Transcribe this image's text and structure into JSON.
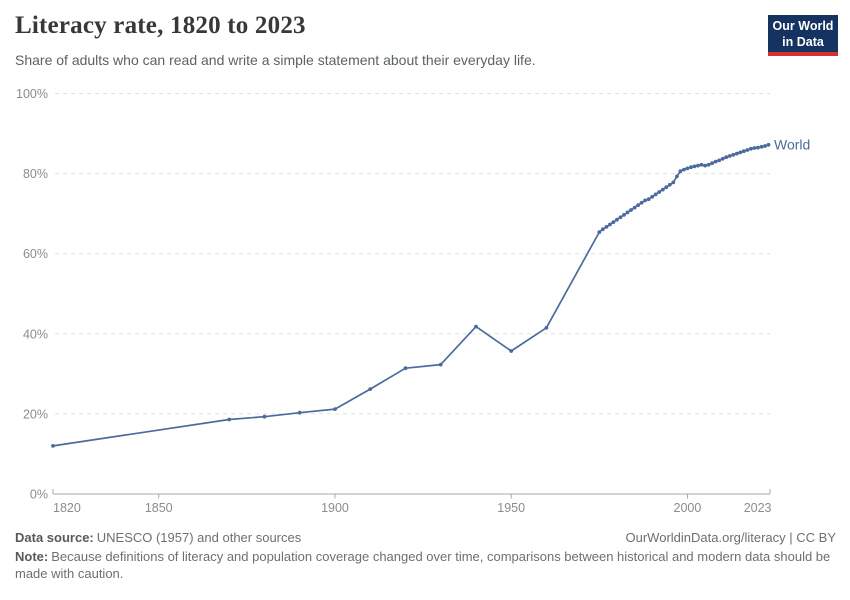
{
  "header": {
    "title": "Literacy rate, 1820 to 2023",
    "subtitle": "Share of adults who can read and write a simple statement about their everyday life.",
    "logo": {
      "line1": "Our World",
      "line2": "in Data",
      "bg_color": "#153360",
      "bar_color": "#d1342f"
    }
  },
  "chart_data": {
    "type": "line",
    "title": "Literacy rate, 1820 to 2023",
    "xlabel": "",
    "ylabel": "",
    "xlim": [
      1820,
      2023
    ],
    "ylim": [
      0,
      100
    ],
    "grid": "horizontal-dashed",
    "legend_position": "end-of-line-label",
    "y_ticks": [
      {
        "value": 0,
        "label": "0%"
      },
      {
        "value": 20,
        "label": "20%"
      },
      {
        "value": 40,
        "label": "40%"
      },
      {
        "value": 60,
        "label": "60%"
      },
      {
        "value": 80,
        "label": "80%"
      },
      {
        "value": 100,
        "label": "100%"
      }
    ],
    "x_ticks": [
      {
        "value": 1820,
        "label": "1820"
      },
      {
        "value": 1850,
        "label": "1850"
      },
      {
        "value": 1900,
        "label": "1900"
      },
      {
        "value": 1950,
        "label": "1950"
      },
      {
        "value": 2000,
        "label": "2000"
      },
      {
        "value": 2023,
        "label": "2023"
      }
    ],
    "series": [
      {
        "name": "World",
        "color": "#4C6A9C",
        "points": [
          [
            1820,
            12.0
          ],
          [
            1870,
            18.6
          ],
          [
            1880,
            19.3
          ],
          [
            1890,
            20.3
          ],
          [
            1900,
            21.2
          ],
          [
            1910,
            26.2
          ],
          [
            1920,
            31.4
          ],
          [
            1930,
            32.3
          ],
          [
            1940,
            41.8
          ],
          [
            1950,
            35.7
          ],
          [
            1960,
            41.5
          ],
          [
            1975,
            65.4
          ],
          [
            1976,
            66.1
          ],
          [
            1977,
            66.7
          ],
          [
            1978,
            67.3
          ],
          [
            1979,
            67.9
          ],
          [
            1980,
            68.5
          ],
          [
            1981,
            69.1
          ],
          [
            1982,
            69.7
          ],
          [
            1983,
            70.3
          ],
          [
            1984,
            70.9
          ],
          [
            1985,
            71.5
          ],
          [
            1986,
            72.1
          ],
          [
            1987,
            72.7
          ],
          [
            1988,
            73.3
          ],
          [
            1989,
            73.6
          ],
          [
            1990,
            74.2
          ],
          [
            1991,
            74.8
          ],
          [
            1992,
            75.4
          ],
          [
            1993,
            76.0
          ],
          [
            1994,
            76.6
          ],
          [
            1995,
            77.2
          ],
          [
            1996,
            77.8
          ],
          [
            1997,
            79.3
          ],
          [
            1998,
            80.6
          ],
          [
            1999,
            81.0
          ],
          [
            2000,
            81.3
          ],
          [
            2001,
            81.6
          ],
          [
            2002,
            81.8
          ],
          [
            2003,
            82.0
          ],
          [
            2004,
            82.2
          ],
          [
            2005,
            82.0
          ],
          [
            2006,
            82.2
          ],
          [
            2007,
            82.6
          ],
          [
            2008,
            83.0
          ],
          [
            2009,
            83.3
          ],
          [
            2010,
            83.7
          ],
          [
            2011,
            84.1
          ],
          [
            2012,
            84.4
          ],
          [
            2013,
            84.7
          ],
          [
            2014,
            85.0
          ],
          [
            2015,
            85.3
          ],
          [
            2016,
            85.6
          ],
          [
            2017,
            85.9
          ],
          [
            2018,
            86.2
          ],
          [
            2019,
            86.4
          ],
          [
            2020,
            86.5
          ],
          [
            2021,
            86.7
          ],
          [
            2022,
            86.9
          ],
          [
            2023,
            87.2
          ]
        ]
      }
    ]
  },
  "footer": {
    "datasource_label": "Data source:",
    "datasource_text": "UNESCO (1957) and other sources",
    "link_text": "OurWorldinData.org/literacy | CC BY",
    "note_label": "Note:",
    "note_text": "Because definitions of literacy and population coverage changed over time, comparisons between historical and modern data should be made with caution."
  },
  "colors": {
    "line": "#4C6A9C",
    "grid": "#e0e0e0",
    "axis": "#a8a8a8",
    "tick_label": "#8c8c8c"
  }
}
